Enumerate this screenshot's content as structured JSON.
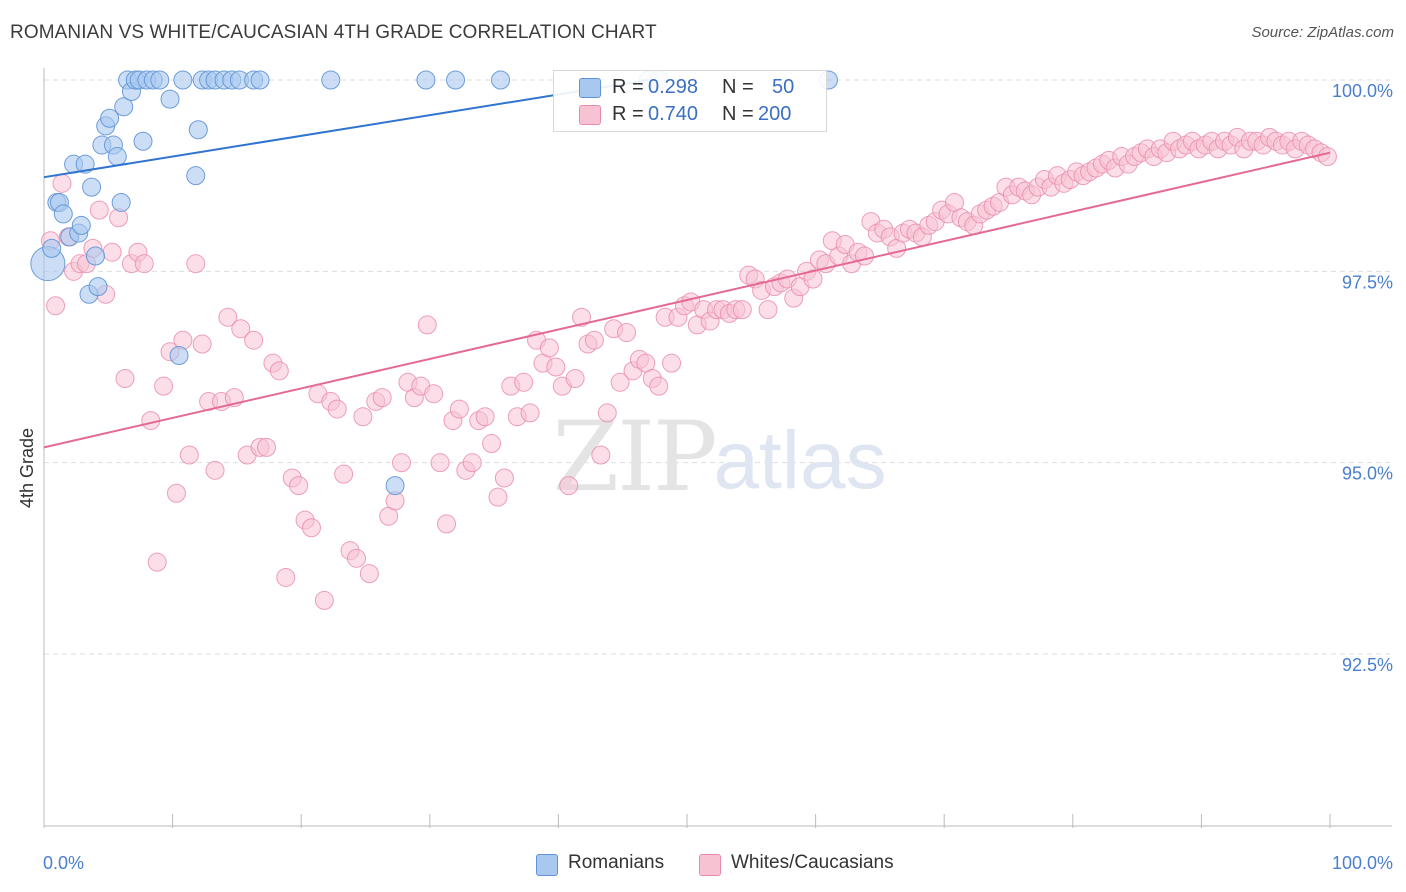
{
  "header": {
    "title": "ROMANIAN VS WHITE/CAUCASIAN 4TH GRADE CORRELATION CHART",
    "source": "Source: ZipAtlas.com"
  },
  "watermark": {
    "zip": "ZIP",
    "atlas": "atlas"
  },
  "legend": {
    "rows": [
      {
        "r_label": "R = ",
        "r_value": "0.298",
        "n_label": "N = ",
        "n_value": "50"
      },
      {
        "r_label": "R = ",
        "r_value": "0.740",
        "n_label": "N = ",
        "n_value": "200"
      }
    ]
  },
  "colors": {
    "blue_fill": "#a9c8f0",
    "blue_stroke": "#5f93d6",
    "blue_line": "#2f74d0",
    "pink_fill": "#f7c3d3",
    "pink_stroke": "#e98aaa",
    "pink_line": "#e46a93",
    "tick_label": "#4a7fd0",
    "grid": "#dddddd"
  },
  "chart_data": {
    "type": "scatter",
    "title": "ROMANIAN VS WHITE/CAUCASIAN 4TH GRADE CORRELATION CHART",
    "xlabel": "",
    "ylabel": "4th Grade",
    "xlim": [
      0,
      100
    ],
    "ylim": [
      90.0,
      100.2
    ],
    "x_tick_labels": [
      "0.0%",
      "100.0%"
    ],
    "y_ticks": [
      92.5,
      95.0,
      97.5,
      100.0
    ],
    "y_tick_labels": [
      "92.5%",
      "95.0%",
      "97.5%",
      "100.0%"
    ],
    "grid": true,
    "legend_position": "bottom-center",
    "series": [
      {
        "name": "Romanians",
        "color": "#a9c8f0",
        "trend": {
          "x": [
            0,
            47
          ],
          "y": [
            98.73,
            100.0
          ]
        },
        "points": [
          [
            0.3,
            97.6
          ],
          [
            0.6,
            97.8
          ],
          [
            1.0,
            98.4
          ],
          [
            1.2,
            98.4
          ],
          [
            1.5,
            98.25
          ],
          [
            2.0,
            97.95
          ],
          [
            2.3,
            98.9
          ],
          [
            2.7,
            98.0
          ],
          [
            2.9,
            98.1
          ],
          [
            3.2,
            98.9
          ],
          [
            3.5,
            97.2
          ],
          [
            3.7,
            98.6
          ],
          [
            4.0,
            97.7
          ],
          [
            4.2,
            97.3
          ],
          [
            4.5,
            99.15
          ],
          [
            4.8,
            99.4
          ],
          [
            5.1,
            99.5
          ],
          [
            5.4,
            99.15
          ],
          [
            5.7,
            99.0
          ],
          [
            6.0,
            98.4
          ],
          [
            6.2,
            99.65
          ],
          [
            6.5,
            100.0
          ],
          [
            6.8,
            99.85
          ],
          [
            7.1,
            100.0
          ],
          [
            7.4,
            100.0
          ],
          [
            7.7,
            99.2
          ],
          [
            8.0,
            100.0
          ],
          [
            8.5,
            100.0
          ],
          [
            9.0,
            100.0
          ],
          [
            9.8,
            99.75
          ],
          [
            10.5,
            96.4
          ],
          [
            10.8,
            100.0
          ],
          [
            11.8,
            98.75
          ],
          [
            12.0,
            99.35
          ],
          [
            12.3,
            100.0
          ],
          [
            12.8,
            100.0
          ],
          [
            13.3,
            100.0
          ],
          [
            14.0,
            100.0
          ],
          [
            14.6,
            100.0
          ],
          [
            15.2,
            100.0
          ],
          [
            16.3,
            100.0
          ],
          [
            16.8,
            100.0
          ],
          [
            22.3,
            100.0
          ],
          [
            27.3,
            94.7
          ],
          [
            29.7,
            100.0
          ],
          [
            32.0,
            100.0
          ],
          [
            35.5,
            100.0
          ],
          [
            47.0,
            100.0
          ],
          [
            47.8,
            100.0
          ],
          [
            61.0,
            100.0
          ]
        ]
      },
      {
        "name": "Whites/Caucasians",
        "color": "#f7c3d3",
        "trend": {
          "x": [
            0,
            100
          ],
          "y": [
            95.2,
            99.05
          ]
        },
        "points": [
          [
            0.5,
            97.9
          ],
          [
            0.9,
            97.05
          ],
          [
            1.4,
            98.65
          ],
          [
            1.9,
            97.95
          ],
          [
            2.3,
            97.5
          ],
          [
            2.8,
            97.6
          ],
          [
            3.3,
            97.6
          ],
          [
            3.8,
            97.8
          ],
          [
            4.3,
            98.3
          ],
          [
            4.8,
            97.2
          ],
          [
            5.3,
            97.75
          ],
          [
            5.8,
            98.2
          ],
          [
            6.3,
            96.1
          ],
          [
            6.8,
            97.6
          ],
          [
            7.3,
            97.75
          ],
          [
            7.8,
            97.6
          ],
          [
            8.3,
            95.55
          ],
          [
            8.8,
            93.7
          ],
          [
            9.3,
            96.0
          ],
          [
            9.8,
            96.45
          ],
          [
            10.3,
            94.6
          ],
          [
            10.8,
            96.6
          ],
          [
            11.3,
            95.1
          ],
          [
            11.8,
            97.6
          ],
          [
            12.3,
            96.55
          ],
          [
            12.8,
            95.8
          ],
          [
            13.3,
            94.9
          ],
          [
            13.8,
            95.8
          ],
          [
            14.3,
            96.9
          ],
          [
            14.8,
            95.85
          ],
          [
            15.3,
            96.75
          ],
          [
            15.8,
            95.1
          ],
          [
            16.3,
            96.6
          ],
          [
            16.8,
            95.2
          ],
          [
            17.3,
            95.2
          ],
          [
            17.8,
            96.3
          ],
          [
            18.3,
            96.2
          ],
          [
            18.8,
            93.5
          ],
          [
            19.3,
            94.8
          ],
          [
            19.8,
            94.7
          ],
          [
            20.3,
            94.25
          ],
          [
            20.8,
            94.15
          ],
          [
            21.3,
            95.9
          ],
          [
            21.8,
            93.2
          ],
          [
            22.3,
            95.8
          ],
          [
            22.8,
            95.7
          ],
          [
            23.3,
            94.85
          ],
          [
            23.8,
            93.85
          ],
          [
            24.3,
            93.75
          ],
          [
            24.8,
            95.6
          ],
          [
            25.3,
            93.55
          ],
          [
            25.8,
            95.8
          ],
          [
            26.3,
            95.85
          ],
          [
            26.8,
            94.3
          ],
          [
            27.3,
            94.5
          ],
          [
            27.8,
            95.0
          ],
          [
            28.3,
            96.05
          ],
          [
            28.8,
            95.85
          ],
          [
            29.3,
            96.0
          ],
          [
            29.8,
            96.8
          ],
          [
            30.3,
            95.9
          ],
          [
            30.8,
            95.0
          ],
          [
            31.3,
            94.2
          ],
          [
            31.8,
            95.55
          ],
          [
            32.3,
            95.7
          ],
          [
            32.8,
            94.9
          ],
          [
            33.3,
            95.0
          ],
          [
            33.8,
            95.55
          ],
          [
            34.3,
            95.6
          ],
          [
            34.8,
            95.25
          ],
          [
            35.3,
            94.55
          ],
          [
            35.8,
            94.8
          ],
          [
            36.3,
            96.0
          ],
          [
            36.8,
            95.6
          ],
          [
            37.3,
            96.05
          ],
          [
            37.8,
            95.65
          ],
          [
            38.3,
            96.6
          ],
          [
            38.8,
            96.3
          ],
          [
            39.3,
            96.5
          ],
          [
            39.8,
            96.25
          ],
          [
            40.3,
            96.0
          ],
          [
            40.8,
            94.7
          ],
          [
            41.3,
            96.1
          ],
          [
            41.8,
            96.9
          ],
          [
            42.3,
            96.55
          ],
          [
            42.8,
            96.6
          ],
          [
            43.3,
            95.1
          ],
          [
            43.8,
            95.65
          ],
          [
            44.3,
            96.75
          ],
          [
            44.8,
            96.05
          ],
          [
            45.3,
            96.7
          ],
          [
            45.8,
            96.2
          ],
          [
            46.3,
            96.35
          ],
          [
            46.8,
            96.3
          ],
          [
            47.3,
            96.1
          ],
          [
            47.8,
            96.0
          ],
          [
            48.3,
            96.9
          ],
          [
            48.8,
            96.3
          ],
          [
            49.3,
            96.9
          ],
          [
            49.8,
            97.05
          ],
          [
            50.3,
            97.1
          ],
          [
            50.8,
            96.8
          ],
          [
            51.3,
            97.0
          ],
          [
            51.8,
            96.85
          ],
          [
            52.3,
            97.0
          ],
          [
            52.8,
            97.0
          ],
          [
            53.3,
            96.95
          ],
          [
            53.8,
            97.0
          ],
          [
            54.3,
            97.0
          ],
          [
            54.8,
            97.45
          ],
          [
            55.3,
            97.4
          ],
          [
            55.8,
            97.25
          ],
          [
            56.3,
            97.0
          ],
          [
            56.8,
            97.3
          ],
          [
            57.3,
            97.35
          ],
          [
            57.8,
            97.4
          ],
          [
            58.3,
            97.15
          ],
          [
            58.8,
            97.3
          ],
          [
            59.3,
            97.5
          ],
          [
            59.8,
            97.4
          ],
          [
            60.3,
            97.65
          ],
          [
            60.8,
            97.6
          ],
          [
            61.3,
            97.9
          ],
          [
            61.8,
            97.7
          ],
          [
            62.3,
            97.85
          ],
          [
            62.8,
            97.6
          ],
          [
            63.3,
            97.75
          ],
          [
            63.8,
            97.7
          ],
          [
            64.3,
            98.15
          ],
          [
            64.8,
            98.0
          ],
          [
            65.3,
            98.05
          ],
          [
            65.8,
            97.95
          ],
          [
            66.3,
            97.8
          ],
          [
            66.8,
            98.0
          ],
          [
            67.3,
            98.05
          ],
          [
            67.8,
            98.0
          ],
          [
            68.3,
            97.95
          ],
          [
            68.8,
            98.1
          ],
          [
            69.3,
            98.15
          ],
          [
            69.8,
            98.3
          ],
          [
            70.3,
            98.25
          ],
          [
            70.8,
            98.4
          ],
          [
            71.3,
            98.2
          ],
          [
            71.8,
            98.15
          ],
          [
            72.3,
            98.1
          ],
          [
            72.8,
            98.25
          ],
          [
            73.3,
            98.3
          ],
          [
            73.8,
            98.35
          ],
          [
            74.3,
            98.4
          ],
          [
            74.8,
            98.6
          ],
          [
            75.3,
            98.5
          ],
          [
            75.8,
            98.6
          ],
          [
            76.3,
            98.55
          ],
          [
            76.8,
            98.5
          ],
          [
            77.3,
            98.6
          ],
          [
            77.8,
            98.7
          ],
          [
            78.3,
            98.6
          ],
          [
            78.8,
            98.75
          ],
          [
            79.3,
            98.65
          ],
          [
            79.8,
            98.7
          ],
          [
            80.3,
            98.8
          ],
          [
            80.8,
            98.75
          ],
          [
            81.3,
            98.8
          ],
          [
            81.8,
            98.85
          ],
          [
            82.3,
            98.9
          ],
          [
            82.8,
            98.95
          ],
          [
            83.3,
            98.85
          ],
          [
            83.8,
            99.0
          ],
          [
            84.3,
            98.9
          ],
          [
            84.8,
            99.0
          ],
          [
            85.3,
            99.05
          ],
          [
            85.8,
            99.1
          ],
          [
            86.3,
            99.0
          ],
          [
            86.8,
            99.1
          ],
          [
            87.3,
            99.05
          ],
          [
            87.8,
            99.2
          ],
          [
            88.3,
            99.1
          ],
          [
            88.8,
            99.15
          ],
          [
            89.3,
            99.2
          ],
          [
            89.8,
            99.1
          ],
          [
            90.3,
            99.15
          ],
          [
            90.8,
            99.2
          ],
          [
            91.3,
            99.1
          ],
          [
            91.8,
            99.2
          ],
          [
            92.3,
            99.15
          ],
          [
            92.8,
            99.25
          ],
          [
            93.3,
            99.1
          ],
          [
            93.8,
            99.2
          ],
          [
            94.3,
            99.2
          ],
          [
            94.8,
            99.15
          ],
          [
            95.3,
            99.25
          ],
          [
            95.8,
            99.2
          ],
          [
            96.3,
            99.15
          ],
          [
            96.8,
            99.2
          ],
          [
            97.3,
            99.1
          ],
          [
            97.8,
            99.2
          ],
          [
            98.3,
            99.15
          ],
          [
            98.8,
            99.1
          ],
          [
            99.3,
            99.05
          ],
          [
            99.8,
            99.0
          ]
        ]
      }
    ]
  },
  "bottom_legend": {
    "items": [
      {
        "label": "Romanians"
      },
      {
        "label": "Whites/Caucasians"
      }
    ]
  }
}
